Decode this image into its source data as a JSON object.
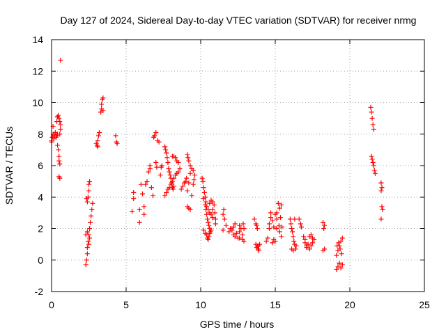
{
  "chart_data": {
    "type": "scatter",
    "title": "Day 127 of 2024, Sidereal Day-to-day VTEC variation (SDTVAR) for receiver nrmg",
    "xlabel": "GPS time / hours",
    "ylabel": "SDTVAR / TECUs",
    "xlim": [
      0,
      25
    ],
    "ylim": [
      -2,
      14
    ],
    "xticks": [
      0,
      5,
      10,
      15,
      20,
      25
    ],
    "yticks": [
      -2,
      0,
      2,
      4,
      6,
      8,
      10,
      12,
      14
    ],
    "grid": true,
    "marker": "+",
    "color": "#ff0000",
    "series": [
      {
        "name": "SDTVAR",
        "points": [
          [
            0.0,
            7.6
          ],
          [
            0.05,
            7.8
          ],
          [
            0.1,
            8.0
          ],
          [
            0.15,
            7.7
          ],
          [
            0.2,
            7.9
          ],
          [
            0.25,
            8.1
          ],
          [
            0.3,
            7.8
          ],
          [
            0.35,
            7.9
          ],
          [
            0.4,
            8.0
          ],
          [
            0.1,
            8.5
          ],
          [
            0.0,
            7.5
          ],
          [
            0.35,
            8.8
          ],
          [
            0.4,
            9.1
          ],
          [
            0.45,
            9.2
          ],
          [
            0.5,
            9.0
          ],
          [
            0.55,
            8.8
          ],
          [
            0.6,
            8.6
          ],
          [
            0.6,
            8.3
          ],
          [
            0.55,
            8.0
          ],
          [
            0.4,
            7.3
          ],
          [
            0.45,
            7.0
          ],
          [
            0.5,
            6.6
          ],
          [
            0.5,
            6.3
          ],
          [
            0.55,
            6.1
          ],
          [
            0.5,
            5.3
          ],
          [
            0.55,
            5.2
          ],
          [
            0.6,
            12.7
          ],
          [
            2.3,
            -0.3
          ],
          [
            2.35,
            0.0
          ],
          [
            2.4,
            0.4
          ],
          [
            2.4,
            0.8
          ],
          [
            2.45,
            1.2
          ],
          [
            2.5,
            1.6
          ],
          [
            2.55,
            2.0
          ],
          [
            2.6,
            2.4
          ],
          [
            2.65,
            2.8
          ],
          [
            2.7,
            3.2
          ],
          [
            2.75,
            3.6
          ],
          [
            2.5,
            1.0
          ],
          [
            2.55,
            1.4
          ],
          [
            2.4,
            3.7
          ],
          [
            2.45,
            4.0
          ],
          [
            2.5,
            4.4
          ],
          [
            2.5,
            4.8
          ],
          [
            2.55,
            5.0
          ],
          [
            2.35,
            3.9
          ],
          [
            2.3,
            1.6
          ],
          [
            2.4,
            1.8
          ],
          [
            3.05,
            7.3
          ],
          [
            3.1,
            7.6
          ],
          [
            3.15,
            7.9
          ],
          [
            3.2,
            8.1
          ],
          [
            3.0,
            7.4
          ],
          [
            3.1,
            7.2
          ],
          [
            3.3,
            9.4
          ],
          [
            3.35,
            9.6
          ],
          [
            3.35,
            9.9
          ],
          [
            3.4,
            10.2
          ],
          [
            3.45,
            10.3
          ],
          [
            3.45,
            9.5
          ],
          [
            4.3,
            7.9
          ],
          [
            4.35,
            7.5
          ],
          [
            4.4,
            7.4
          ],
          [
            5.4,
            3.1
          ],
          [
            5.5,
            3.9
          ],
          [
            5.5,
            4.3
          ],
          [
            5.9,
            3.2
          ],
          [
            5.9,
            2.4
          ],
          [
            6.0,
            4.8
          ],
          [
            6.1,
            4.2
          ],
          [
            6.2,
            2.9
          ],
          [
            6.2,
            3.4
          ],
          [
            6.3,
            4.8
          ],
          [
            6.4,
            5.0
          ],
          [
            6.5,
            5.6
          ],
          [
            6.6,
            6.0
          ],
          [
            6.6,
            5.8
          ],
          [
            6.7,
            4.6
          ],
          [
            6.8,
            4.1
          ],
          [
            6.85,
            7.8
          ],
          [
            6.9,
            7.9
          ],
          [
            7.0,
            8.1
          ],
          [
            7.0,
            6.2
          ],
          [
            7.05,
            5.9
          ],
          [
            7.1,
            7.6
          ],
          [
            7.2,
            7.5
          ],
          [
            7.3,
            5.4
          ],
          [
            7.35,
            5.9
          ],
          [
            7.4,
            6.0
          ],
          [
            7.6,
            7.2
          ],
          [
            7.65,
            7.0
          ],
          [
            7.7,
            6.8
          ],
          [
            7.75,
            6.5
          ],
          [
            7.8,
            6.2
          ],
          [
            7.85,
            5.8
          ],
          [
            7.9,
            5.6
          ],
          [
            7.95,
            5.4
          ],
          [
            8.0,
            5.2
          ],
          [
            8.05,
            4.9
          ],
          [
            8.1,
            4.6
          ],
          [
            8.15,
            4.5
          ],
          [
            8.2,
            4.7
          ],
          [
            7.6,
            4.1
          ],
          [
            7.7,
            4.3
          ],
          [
            7.8,
            4.5
          ],
          [
            7.9,
            4.6
          ],
          [
            8.0,
            4.8
          ],
          [
            8.1,
            5.0
          ],
          [
            8.2,
            5.2
          ],
          [
            8.3,
            5.4
          ],
          [
            8.4,
            5.5
          ],
          [
            8.5,
            5.6
          ],
          [
            8.6,
            5.8
          ],
          [
            8.1,
            6.6
          ],
          [
            8.2,
            6.6
          ],
          [
            8.3,
            6.5
          ],
          [
            8.4,
            6.3
          ],
          [
            8.5,
            6.2
          ],
          [
            8.7,
            4.5
          ],
          [
            8.8,
            4.7
          ],
          [
            8.9,
            4.9
          ],
          [
            9.0,
            5.0
          ],
          [
            9.05,
            5.2
          ],
          [
            9.1,
            4.4
          ],
          [
            9.2,
            4.9
          ],
          [
            9.3,
            5.5
          ],
          [
            9.4,
            5.8
          ],
          [
            9.5,
            5.7
          ],
          [
            9.1,
            6.7
          ],
          [
            9.15,
            6.5
          ],
          [
            9.2,
            6.3
          ],
          [
            9.3,
            6.0
          ],
          [
            9.1,
            3.4
          ],
          [
            9.2,
            3.3
          ],
          [
            9.3,
            3.2
          ],
          [
            9.4,
            4.1
          ],
          [
            9.5,
            4.8
          ],
          [
            9.55,
            5.1
          ],
          [
            9.6,
            5.4
          ],
          [
            10.1,
            5.2
          ],
          [
            10.15,
            5.0
          ],
          [
            10.2,
            4.6
          ],
          [
            10.25,
            4.3
          ],
          [
            10.3,
            4.0
          ],
          [
            10.35,
            3.7
          ],
          [
            10.4,
            3.4
          ],
          [
            10.5,
            3.2
          ],
          [
            10.6,
            3.0
          ],
          [
            10.7,
            2.9
          ],
          [
            10.8,
            2.7
          ],
          [
            10.2,
            3.9
          ],
          [
            10.3,
            3.5
          ],
          [
            10.35,
            3.2
          ],
          [
            10.4,
            2.9
          ],
          [
            10.45,
            2.6
          ],
          [
            10.5,
            2.4
          ],
          [
            10.55,
            2.2
          ],
          [
            10.6,
            2.0
          ],
          [
            10.65,
            1.8
          ],
          [
            10.2,
            1.9
          ],
          [
            10.3,
            1.7
          ],
          [
            10.4,
            1.6
          ],
          [
            10.45,
            1.4
          ],
          [
            10.5,
            1.3
          ],
          [
            10.55,
            1.5
          ],
          [
            10.6,
            1.7
          ],
          [
            10.7,
            1.9
          ],
          [
            10.6,
            3.6
          ],
          [
            10.7,
            3.8
          ],
          [
            10.8,
            3.7
          ],
          [
            10.8,
            3.2
          ],
          [
            10.8,
            2.7
          ],
          [
            10.9,
            3.5
          ],
          [
            10.95,
            3.0
          ],
          [
            11.0,
            2.6
          ],
          [
            11.0,
            2.3
          ],
          [
            11.5,
            2.9
          ],
          [
            11.55,
            3.2
          ],
          [
            11.6,
            2.6
          ],
          [
            11.5,
            1.9
          ],
          [
            11.7,
            2.2
          ],
          [
            11.9,
            1.8
          ],
          [
            12.0,
            2.0
          ],
          [
            12.1,
            1.9
          ],
          [
            12.2,
            2.1
          ],
          [
            12.2,
            1.6
          ],
          [
            12.3,
            1.5
          ],
          [
            12.3,
            2.3
          ],
          [
            12.4,
            1.7
          ],
          [
            12.6,
            1.4
          ],
          [
            12.6,
            1.8
          ],
          [
            12.6,
            2.2
          ],
          [
            12.7,
            2.0
          ],
          [
            12.8,
            1.6
          ],
          [
            12.8,
            1.3
          ],
          [
            12.9,
            1.2
          ],
          [
            12.9,
            2.0
          ],
          [
            12.85,
            2.3
          ],
          [
            12.5,
            1.4
          ],
          [
            13.6,
            2.6
          ],
          [
            13.7,
            2.3
          ],
          [
            13.75,
            2.2
          ],
          [
            13.8,
            2.0
          ],
          [
            13.7,
            1.0
          ],
          [
            13.75,
            0.8
          ],
          [
            13.8,
            0.9
          ],
          [
            13.85,
            0.7
          ],
          [
            13.9,
            0.6
          ],
          [
            13.9,
            0.9
          ],
          [
            13.95,
            1.0
          ],
          [
            14.4,
            1.2
          ],
          [
            14.5,
            1.4
          ],
          [
            14.6,
            2.0
          ],
          [
            14.6,
            2.3
          ],
          [
            14.7,
            2.7
          ],
          [
            14.7,
            3.0
          ],
          [
            14.8,
            2.5
          ],
          [
            14.8,
            1.1
          ],
          [
            14.9,
            1.3
          ],
          [
            14.9,
            2.1
          ],
          [
            15.0,
            1.2
          ],
          [
            15.0,
            2.9
          ],
          [
            15.1,
            2.6
          ],
          [
            15.1,
            3.0
          ],
          [
            15.1,
            2.0
          ],
          [
            15.2,
            3.6
          ],
          [
            15.25,
            2.2
          ],
          [
            15.3,
            3.3
          ],
          [
            15.3,
            1.8
          ],
          [
            15.35,
            2.7
          ],
          [
            15.4,
            3.5
          ],
          [
            15.4,
            1.5
          ],
          [
            15.45,
            2.1
          ],
          [
            16.0,
            2.6
          ],
          [
            16.05,
            2.3
          ],
          [
            16.1,
            2.0
          ],
          [
            16.15,
            1.8
          ],
          [
            16.2,
            1.5
          ],
          [
            16.25,
            1.2
          ],
          [
            16.3,
            2.6
          ],
          [
            16.3,
            1.0
          ],
          [
            16.4,
            0.9
          ],
          [
            16.35,
            0.7
          ],
          [
            16.2,
            0.6
          ],
          [
            16.1,
            0.7
          ],
          [
            16.6,
            2.6
          ],
          [
            16.7,
            2.3
          ],
          [
            16.75,
            2.1
          ],
          [
            16.9,
            1.5
          ],
          [
            17.0,
            1.3
          ],
          [
            17.0,
            1.1
          ],
          [
            17.1,
            0.9
          ],
          [
            17.1,
            0.8
          ],
          [
            17.2,
            1.0
          ],
          [
            17.3,
            1.5
          ],
          [
            17.4,
            1.6
          ],
          [
            17.5,
            1.4
          ],
          [
            17.5,
            1.1
          ],
          [
            17.3,
            0.7
          ],
          [
            17.4,
            0.9
          ],
          [
            17.6,
            1.3
          ],
          [
            18.2,
            2.4
          ],
          [
            18.3,
            2.2
          ],
          [
            18.25,
            2.0
          ],
          [
            18.2,
            0.6
          ],
          [
            18.3,
            0.7
          ],
          [
            19.1,
            0.3
          ],
          [
            19.2,
            0.6
          ],
          [
            19.3,
            0.9
          ],
          [
            19.4,
            1.2
          ],
          [
            19.5,
            1.4
          ],
          [
            19.15,
            0.9
          ],
          [
            19.25,
            1.1
          ],
          [
            19.35,
            0.7
          ],
          [
            19.45,
            0.4
          ],
          [
            19.2,
            -0.4
          ],
          [
            19.3,
            -0.2
          ],
          [
            19.4,
            -0.5
          ],
          [
            19.5,
            -0.3
          ],
          [
            19.1,
            -0.6
          ],
          [
            21.4,
            9.7
          ],
          [
            21.45,
            9.4
          ],
          [
            21.5,
            9.0
          ],
          [
            21.55,
            8.6
          ],
          [
            21.6,
            8.3
          ],
          [
            21.5,
            6.4
          ],
          [
            21.55,
            6.2
          ],
          [
            21.6,
            6.0
          ],
          [
            21.65,
            5.7
          ],
          [
            21.7,
            5.5
          ],
          [
            21.45,
            6.6
          ],
          [
            22.1,
            4.9
          ],
          [
            22.15,
            4.6
          ],
          [
            22.1,
            4.4
          ],
          [
            22.15,
            3.4
          ],
          [
            22.2,
            3.2
          ],
          [
            22.1,
            2.6
          ]
        ]
      }
    ]
  }
}
